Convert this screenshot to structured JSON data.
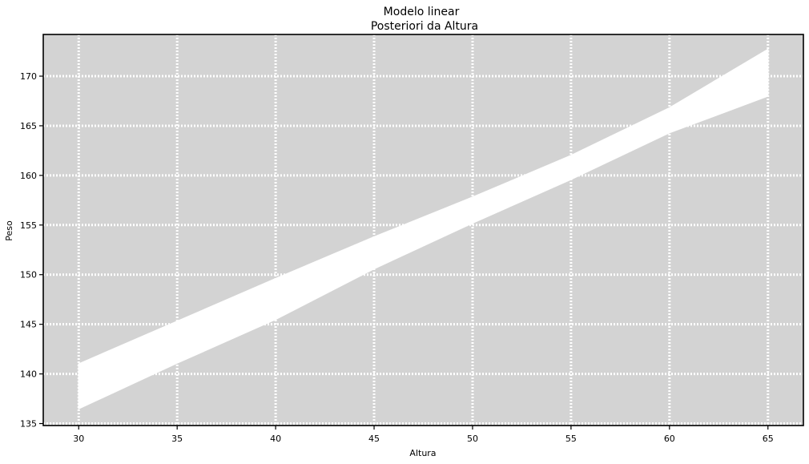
{
  "chart_data": {
    "type": "area",
    "style": "xkcd",
    "title": "Modelo linear",
    "subtitle": "Posteriori da Altura",
    "xlabel": "Altura",
    "ylabel": "Peso",
    "xlim": [
      28.2,
      66.8
    ],
    "ylim": [
      134.8,
      174.2
    ],
    "xticks": [
      30,
      35,
      40,
      45,
      50,
      55,
      60,
      65
    ],
    "yticks": [
      135,
      140,
      145,
      150,
      155,
      160,
      165,
      170
    ],
    "grid": true,
    "background": "#d3d3d3",
    "grid_color": "#ffffff",
    "band_color": "#ffffff",
    "series": [
      {
        "x": [
          30,
          35,
          40,
          45,
          50,
          55,
          60,
          65
        ],
        "upper": [
          141.0,
          145.3,
          149.6,
          153.8,
          157.8,
          162.0,
          166.8,
          172.7
        ],
        "lower": [
          136.5,
          141.1,
          145.5,
          150.6,
          155.2,
          159.6,
          164.3,
          168.0
        ]
      }
    ]
  }
}
